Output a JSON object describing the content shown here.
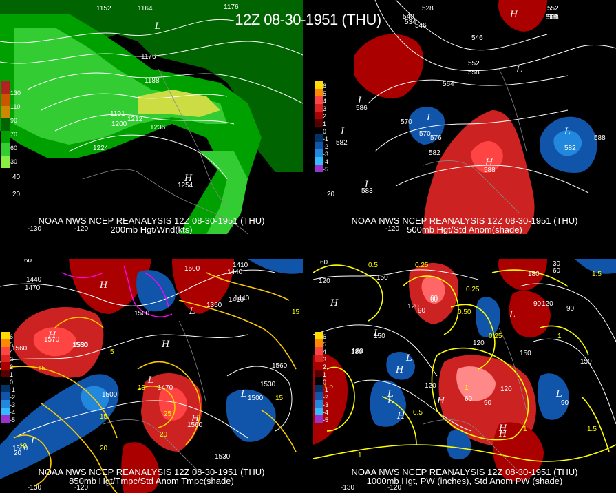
{
  "main_title": "12Z 08-30-1951 (THU)",
  "panels": [
    {
      "id": "p200",
      "caption_line1": "NOAA NWS NCEP REANALYSIS 12Z 08-30-1951 (THU)",
      "caption_line2": "200mb Hgt/Wnd(kts)",
      "colorbar": {
        "colors": [
          "#b22222",
          "#cc5500",
          "#cc8800",
          "#006400",
          "#00a000",
          "#33cc33",
          "#88ee44"
        ],
        "labels": [
          "130",
          "110",
          "90",
          "70",
          "60",
          "30"
        ]
      },
      "contour_labels": [
        "1152",
        "1164",
        "1176",
        "1176",
        "1188",
        "1200",
        "1212",
        "1224",
        "1236",
        "1191",
        "1254"
      ],
      "centers": [
        "L",
        "H"
      ],
      "lat_labels": [
        "40",
        "20"
      ],
      "lon_labels": [
        "-130",
        "-120"
      ]
    },
    {
      "id": "p500",
      "caption_line1": "NOAA NWS NCEP REANALYSIS 12Z 08-30-1951 (THU)",
      "caption_line2": "500mb Hgt/Std Anom(shade)",
      "colorbar": {
        "colors": [
          "#ffdd00",
          "#ff8800",
          "#ff4444",
          "#dd2222",
          "#aa0000",
          "#550000",
          "#000000",
          "#003366",
          "#1155aa",
          "#2288dd",
          "#33bbff",
          "#9933cc"
        ],
        "labels": [
          "6",
          "5",
          "4",
          "3",
          "2",
          "1",
          "0",
          "-1",
          "-2",
          "-3",
          "-4",
          "-5"
        ]
      },
      "contour_labels": [
        "528",
        "534",
        "540",
        "546",
        "552",
        "558",
        "546",
        "552",
        "558",
        "564",
        "570",
        "576",
        "582",
        "588",
        "582",
        "588",
        "583",
        "588",
        "586",
        "582",
        "570"
      ],
      "centers": [
        "L",
        "L",
        "L",
        "L",
        "H",
        "H",
        "L",
        "L"
      ],
      "lat_labels": [
        "20"
      ],
      "lon_labels": [
        "-120"
      ]
    },
    {
      "id": "p850",
      "caption_line1": "NOAA NWS NCEP REANALYSIS 12Z 08-30-1951 (THU)",
      "caption_line2": "850mb Hgt/Tmpc/Std Anom Tmpc(shade)",
      "colorbar": {
        "colors": [
          "#ffdd00",
          "#ff8800",
          "#ff4444",
          "#dd2222",
          "#aa0000",
          "#550000",
          "#000000",
          "#003366",
          "#1155aa",
          "#2288dd",
          "#33bbff",
          "#9933cc"
        ],
        "labels": [
          "6",
          "5",
          "4",
          "3",
          "2",
          "1",
          "0",
          "-1",
          "-2",
          "-3",
          "-4",
          "-5"
        ]
      },
      "contour_labels": [
        "1440",
        "1470",
        "1500",
        "1410",
        "1440",
        "1350",
        "1410",
        "1440",
        "1500",
        "1530",
        "1560",
        "1570",
        "1530",
        "1500",
        "1470",
        "1560",
        "1530",
        "1500",
        "1560",
        "1530",
        "1500"
      ],
      "temp_labels": [
        "15",
        "15",
        "10",
        "5",
        "15",
        "20",
        "25",
        "20",
        "10",
        "15"
      ],
      "centers": [
        "H",
        "H",
        "L",
        "L",
        "H",
        "L",
        "H",
        "L"
      ],
      "lat_labels": [
        "60",
        "20"
      ],
      "lon_labels": [
        "-130",
        "-120"
      ]
    },
    {
      "id": "p1000",
      "caption_line1": "NOAA NWS NCEP REANALYSIS 12Z 08-30-1951 (THU)",
      "caption_line2": "1000mb Hgt, PW (inches), Std Anom PW (shade)",
      "colorbar": {
        "colors": [
          "#ffdd00",
          "#ff8800",
          "#ff4444",
          "#dd2222",
          "#aa0000",
          "#550000",
          "#000000",
          "#003366",
          "#1155aa",
          "#2288dd",
          "#33bbff",
          "#9933cc"
        ],
        "labels": [
          "6",
          "5",
          "4",
          "3",
          "2",
          "1",
          "0",
          "-1",
          "-2",
          "-3",
          "-4",
          "-5"
        ]
      },
      "contour_labels": [
        "120",
        "150",
        "180",
        "60",
        "90",
        "120",
        "150",
        "180",
        "120",
        "90",
        "60",
        "30",
        "60",
        "90",
        "120",
        "150",
        "180",
        "60",
        "90",
        "120",
        "150",
        "90",
        "120"
      ],
      "pw_labels": [
        "0.5",
        "0.25",
        "0.25",
        "0.50",
        "0.25",
        "1",
        "1.5",
        "1",
        "1.5",
        "1",
        "0.5",
        "1",
        "1.5"
      ],
      "centers": [
        "H",
        "L",
        "H",
        "L",
        "L",
        "L",
        "H",
        "H",
        "L",
        "H",
        "L",
        "H"
      ],
      "lat_labels": [
        "60"
      ],
      "lon_labels": [
        "-130",
        "-120"
      ]
    }
  ]
}
